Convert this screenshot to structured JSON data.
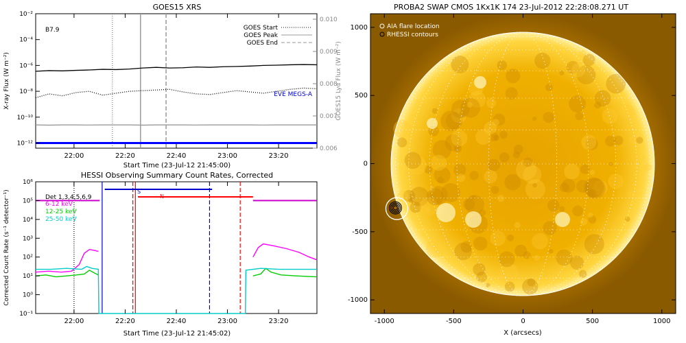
{
  "chart_data": [
    {
      "type": "line",
      "title": "GOES15 XRS",
      "xlabel": "Start Time (23-Jul-12 21:45:00)",
      "ylabel": "X-ray Flux (W m⁻²)",
      "ylabel_right": "GOES15 Lyα Flux (W m⁻²)",
      "x_ticks": [
        "22:00",
        "22:20",
        "22:40",
        "23:00",
        "23:20"
      ],
      "x_tick_minutes": [
        15,
        35,
        55,
        75,
        95
      ],
      "x_range_minutes": [
        0,
        110
      ],
      "y_ticks": [
        "10⁻²",
        "10⁻⁴",
        "10⁻⁶",
        "10⁻⁸",
        "10⁻¹⁰",
        "10⁻¹²"
      ],
      "y_tick_exponents": [
        -2,
        -4,
        -6,
        -8,
        -10,
        -12
      ],
      "y_exp_range": [
        -12.4,
        -2
      ],
      "y_scale": "log",
      "y2_ticks": [
        "0.010",
        "0.009",
        "0.008",
        "0.007",
        "0.006"
      ],
      "y2_tick_values": [
        0.01,
        0.009,
        0.008,
        0.007,
        0.006
      ],
      "y2_range": [
        0.006,
        0.01
      ],
      "annotation": "B7.9",
      "eve_label": "EVE MEGS-A",
      "legend": [
        {
          "label": "GOES Start",
          "style": "dotted"
        },
        {
          "label": "GOES Peak",
          "style": "solid"
        },
        {
          "label": "GOES End",
          "style": "dashed"
        }
      ],
      "event_lines_minutes": {
        "start": 30,
        "peak": 41,
        "end": 51
      },
      "series": [
        {
          "color": "#000000",
          "log10_values": [
            -6.45,
            -6.4,
            -6.42,
            -6.38,
            -6.35,
            -6.3,
            -6.32,
            -6.28,
            -6.2,
            -6.15,
            -6.2,
            -6.18,
            -6.12,
            -6.15,
            -6.1,
            -6.08,
            -6.05,
            -6.0,
            -5.98,
            -5.95,
            -5.93,
            -5.95
          ]
        },
        {
          "color": "#000000",
          "style": "dotted",
          "log10_values": [
            -8.5,
            -8.2,
            -8.35,
            -8.1,
            -8.0,
            -8.3,
            -8.15,
            -8.0,
            -7.95,
            -7.9,
            -7.85,
            -8.05,
            -8.2,
            -8.25,
            -8.1,
            -7.95,
            -8.05,
            -8.15,
            -8.0,
            -7.85,
            -7.75,
            -7.8
          ]
        },
        {
          "color": "#999999",
          "log10_values": [
            -10.6,
            -10.62,
            -10.6,
            -10.6,
            -10.61,
            -10.6,
            -10.6,
            -10.6,
            -10.62,
            -10.6,
            -10.6,
            -10.6,
            -10.61,
            -10.6,
            -10.6,
            -10.6,
            -10.6,
            -10.61,
            -10.6,
            -10.6,
            -10.6,
            -10.6
          ]
        },
        {
          "color": "#0000ff",
          "log10_values": [
            -12.0,
            -12.0,
            -12.0,
            -12.0,
            -12.0,
            -12.0,
            -12.0,
            -12.0,
            -12.0,
            -12.0,
            -12.0,
            -12.0,
            -12.0,
            -12.0,
            -12.0,
            -12.0,
            -12.0,
            -12.0,
            -12.0,
            -12.0,
            -12.0,
            -12.0
          ]
        }
      ]
    },
    {
      "type": "line",
      "title": "HESSI Observing Summary Count Rates, Corrected",
      "xlabel": "Start Time (23-Jul-12 21:45:02)",
      "ylabel": "Corrected Count Rate (s⁻¹ detector⁻¹)",
      "x_ticks": [
        "22:00",
        "22:20",
        "22:40",
        "23:00",
        "23:20"
      ],
      "x_tick_minutes": [
        15,
        35,
        55,
        75,
        95
      ],
      "x_range_minutes": [
        0,
        110
      ],
      "y_ticks": [
        "10⁶",
        "10⁵",
        "10⁴",
        "10³",
        "10²",
        "10¹",
        "10⁰",
        "10⁻¹"
      ],
      "y_tick_exponents": [
        6,
        5,
        4,
        3,
        2,
        1,
        0,
        -1
      ],
      "y_exp_range": [
        -1,
        6
      ],
      "y_scale": "log",
      "legend": [
        {
          "label": "Det 1,3,4,5,6,9",
          "color": "#000000"
        },
        {
          "label": "6-12 keV",
          "color": "#ff00ff"
        },
        {
          "label": "12-25 keV",
          "color": "#00cc00"
        },
        {
          "label": "25-50 keV",
          "color": "#00cccc"
        }
      ],
      "markers": {
        "s_label": "S",
        "n_label": "N"
      },
      "series": [
        {
          "name": "6-12 keV",
          "color": "#ff00ff",
          "segments": [
            [
              [
                0,
                1.2
              ],
              [
                5,
                1.25
              ],
              [
                10,
                1.2
              ],
              [
                14,
                1.25
              ],
              [
                17,
                1.6
              ],
              [
                19,
                2.2
              ],
              [
                21,
                2.4
              ],
              [
                23,
                2.35
              ],
              [
                24.5,
                2.3
              ]
            ],
            [
              [
                85,
                2.0
              ],
              [
                87,
                2.5
              ],
              [
                89,
                2.7
              ],
              [
                93,
                2.6
              ],
              [
                98,
                2.45
              ],
              [
                103,
                2.25
              ],
              [
                107,
                2.0
              ],
              [
                110,
                1.85
              ]
            ]
          ]
        },
        {
          "name": "12-25 keV",
          "color": "#00cc00",
          "segments": [
            [
              [
                0,
                1.0
              ],
              [
                4,
                1.05
              ],
              [
                8,
                0.95
              ],
              [
                12,
                1.0
              ],
              [
                16,
                1.05
              ],
              [
                19,
                1.1
              ],
              [
                21,
                1.3
              ],
              [
                23,
                1.15
              ],
              [
                24.5,
                1.05
              ]
            ],
            [
              [
                85,
                1.0
              ],
              [
                88,
                1.1
              ],
              [
                90,
                1.4
              ],
              [
                92,
                1.2
              ],
              [
                96,
                1.05
              ],
              [
                102,
                1.0
              ],
              [
                110,
                0.95
              ]
            ]
          ]
        },
        {
          "name": "25-50 keV",
          "color": "#00cccc",
          "segments": [
            [
              [
                0,
                1.35
              ],
              [
                6,
                1.35
              ],
              [
                12,
                1.4
              ],
              [
                18,
                1.35
              ],
              [
                20,
                1.5
              ],
              [
                22,
                1.4
              ],
              [
                24.5,
                1.35
              ],
              [
                24.7,
                -1
              ],
              [
                82,
                -1
              ],
              [
                82.2,
                1.3
              ],
              [
                88,
                1.4
              ],
              [
                95,
                1.35
              ],
              [
                110,
                1.35
              ]
            ]
          ]
        }
      ],
      "bars": [
        {
          "name": "magenta-level",
          "color": "#cc00cc",
          "x": [
            0,
            25
          ],
          "log10": 5.0
        },
        {
          "name": "magenta-level-right",
          "color": "#cc00cc",
          "x": [
            85,
            110
          ],
          "log10": 5.0
        },
        {
          "name": "blue-bar",
          "color": "#0000cc",
          "x": [
            27,
            69
          ],
          "log10": 5.6
        },
        {
          "name": "red-bar",
          "color": "#ff0000",
          "x": [
            40,
            85
          ],
          "log10": 5.2
        }
      ],
      "event_lines_minutes": [
        {
          "x": 26,
          "color": "#0000cc",
          "style": "solid"
        },
        {
          "x": 38,
          "color": "#ff0000",
          "style": "dashed"
        },
        {
          "x": 39,
          "color": "#ff0000",
          "style": "solid"
        },
        {
          "x": 68,
          "color": "#0000cc",
          "style": "dashed"
        },
        {
          "x": 80,
          "color": "#ff0000",
          "style": "dashed"
        },
        {
          "x": 15,
          "color": "#000000",
          "style": "dotted"
        }
      ]
    },
    {
      "type": "image",
      "title": "PROBA2 SWAP CMOS 1Kx1K 174 23-Jul-2012 22:28:08.271 UT",
      "xlabel": "X (arcsecs)",
      "x_ticks": [
        "-1000",
        "-500",
        "0",
        "500",
        "1000"
      ],
      "x_tick_values": [
        -1000,
        -500,
        0,
        500,
        1000
      ],
      "y_ticks": [
        "1000",
        "500",
        "0",
        "-500",
        "-1000"
      ],
      "y_tick_values": [
        1000,
        500,
        0,
        -500,
        -1000
      ],
      "range_arcsec": [
        -1100,
        1100
      ],
      "legend": [
        {
          "label": "AIA flare location",
          "marker": "open-circle"
        },
        {
          "label": "RHESSI contours",
          "marker": "black-circle"
        }
      ],
      "flare_location_arcsec": [
        -910,
        -330
      ],
      "solar_radius_arcsec": 945
    }
  ]
}
